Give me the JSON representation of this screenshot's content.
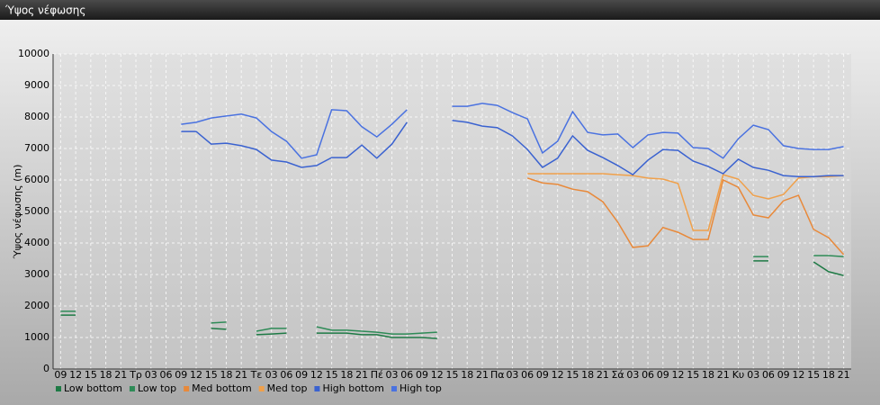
{
  "chart_data": {
    "type": "line",
    "title": "Ύψος νέφωσης",
    "ylabel": "Ύψος νέφωσης (m)",
    "categories": [
      "09",
      "12",
      "15",
      "18",
      "21",
      "Τρ",
      "03",
      "06",
      "09",
      "12",
      "15",
      "18",
      "21",
      "Τε",
      "03",
      "06",
      "09",
      "12",
      "15",
      "18",
      "21",
      "Πέ",
      "03",
      "06",
      "09",
      "12",
      "15",
      "18",
      "21",
      "Πα",
      "03",
      "06",
      "09",
      "12",
      "15",
      "18",
      "21",
      "Σά",
      "03",
      "06",
      "09",
      "12",
      "15",
      "18",
      "21",
      "Κυ",
      "03",
      "06",
      "09",
      "12",
      "15",
      "18",
      "21"
    ],
    "ylim": [
      0,
      10000
    ],
    "yticks": [
      0,
      1000,
      2000,
      3000,
      4000,
      5000,
      6000,
      7000,
      8000,
      9000,
      10000
    ],
    "grid": true,
    "series": [
      {
        "name": "Low bottom",
        "color": "#1e7a45",
        "values": [
          1710,
          1710,
          null,
          null,
          null,
          null,
          null,
          null,
          null,
          null,
          1290,
          1260,
          null,
          1090,
          1110,
          1140,
          null,
          1140,
          1140,
          1140,
          1090,
          1090,
          1000,
          1000,
          1000,
          970,
          null,
          null,
          null,
          null,
          null,
          null,
          null,
          null,
          null,
          null,
          null,
          null,
          null,
          null,
          null,
          null,
          null,
          null,
          null,
          null,
          3430,
          3430,
          null,
          null,
          3400,
          3090,
          2970
        ]
      },
      {
        "name": "Low top",
        "color": "#2e8b57",
        "values": [
          1830,
          1830,
          null,
          null,
          null,
          null,
          null,
          null,
          null,
          null,
          1460,
          1490,
          null,
          1200,
          1290,
          1290,
          null,
          1340,
          1230,
          1230,
          1200,
          1170,
          1110,
          1110,
          1140,
          1170,
          null,
          null,
          null,
          null,
          null,
          null,
          null,
          null,
          null,
          null,
          null,
          null,
          null,
          null,
          null,
          null,
          null,
          null,
          null,
          null,
          3570,
          3570,
          null,
          null,
          3600,
          3600,
          3570
        ]
      },
      {
        "name": "Med bottom",
        "color": "#e8893a",
        "values": [
          null,
          null,
          null,
          null,
          null,
          null,
          null,
          null,
          null,
          null,
          null,
          null,
          null,
          null,
          null,
          null,
          null,
          null,
          null,
          null,
          null,
          null,
          null,
          null,
          null,
          null,
          null,
          null,
          null,
          null,
          null,
          6060,
          5910,
          5860,
          5710,
          5630,
          5310,
          4660,
          3860,
          3910,
          4490,
          4340,
          4110,
          4110,
          6000,
          5770,
          4890,
          4800,
          5340,
          5510,
          4430,
          4170,
          3630
        ]
      },
      {
        "name": "Med top",
        "color": "#f0a04a",
        "values": [
          null,
          null,
          null,
          null,
          null,
          null,
          null,
          null,
          null,
          null,
          null,
          null,
          null,
          null,
          null,
          null,
          null,
          null,
          null,
          null,
          null,
          null,
          null,
          null,
          null,
          null,
          null,
          null,
          null,
          null,
          null,
          6200,
          6200,
          6200,
          6200,
          6200,
          6200,
          6170,
          6140,
          6060,
          6030,
          5890,
          4400,
          4400,
          6170,
          6030,
          5510,
          5400,
          5540,
          6060,
          6110,
          6110,
          6140
        ]
      },
      {
        "name": "High bottom",
        "color": "#3a62d0",
        "values": [
          null,
          null,
          null,
          null,
          null,
          null,
          null,
          null,
          7540,
          7540,
          7140,
          7170,
          7090,
          6970,
          6630,
          6570,
          6400,
          6460,
          6710,
          6710,
          7110,
          6690,
          7140,
          7830,
          null,
          null,
          7890,
          7830,
          7710,
          7660,
          7400,
          6970,
          6400,
          6690,
          7400,
          6940,
          6710,
          6460,
          6170,
          6630,
          6970,
          6940,
          6600,
          6430,
          6200,
          6660,
          6400,
          6310,
          6140,
          6110,
          6110,
          6140,
          6140
        ]
      },
      {
        "name": "High top",
        "color": "#4a72e0",
        "values": [
          null,
          null,
          null,
          null,
          null,
          null,
          null,
          null,
          7770,
          7830,
          7970,
          8030,
          8090,
          7970,
          7540,
          7230,
          6690,
          6800,
          8230,
          8200,
          7690,
          7370,
          7770,
          8230,
          null,
          null,
          8340,
          8340,
          8430,
          8370,
          8140,
          7940,
          6860,
          7230,
          8170,
          7510,
          7430,
          7460,
          7030,
          7430,
          7510,
          7490,
          7030,
          7000,
          6690,
          7310,
          7740,
          7600,
          7090,
          7000,
          6970,
          6970,
          7060
        ]
      }
    ]
  }
}
